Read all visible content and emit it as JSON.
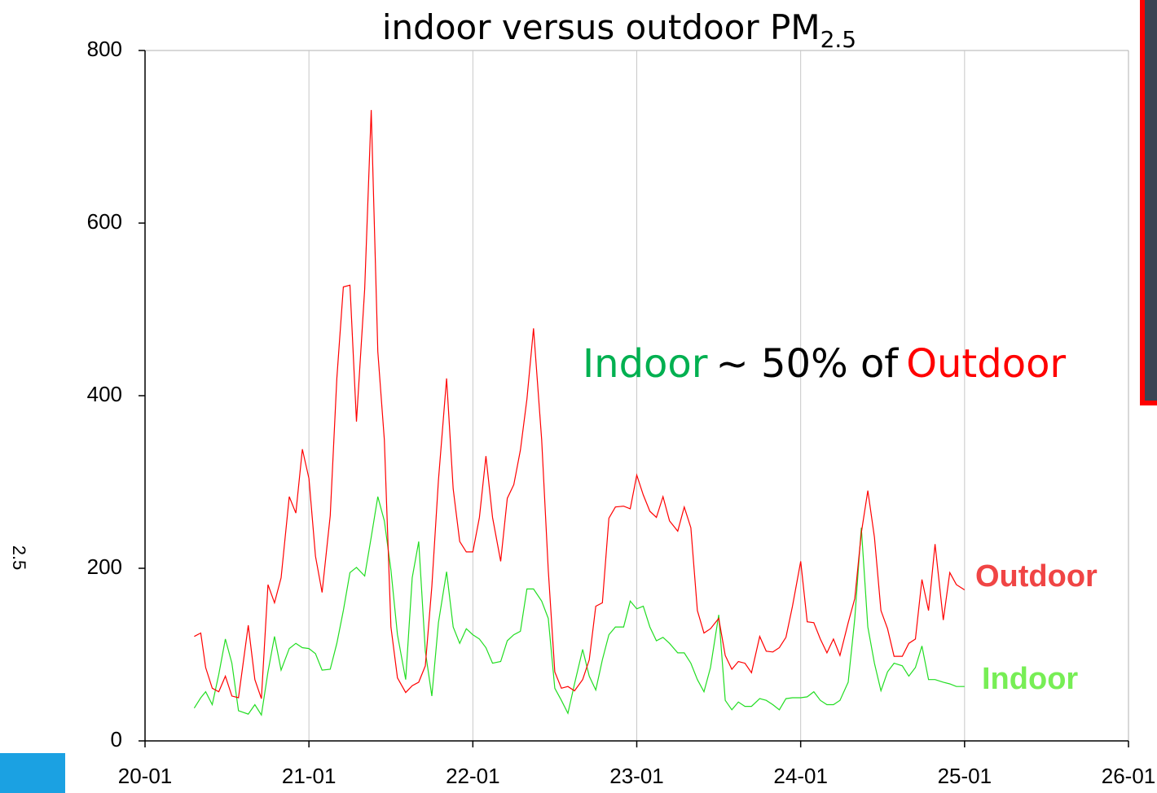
{
  "chart_data": {
    "type": "line",
    "title": "indoor versus outdoor PM",
    "title_subscript": "2.5",
    "annotation": [
      "Indoor",
      "~ 50% of",
      "Outdoor"
    ],
    "annotation_colors": [
      "#00b050",
      "#000000",
      "#ff0000"
    ],
    "x": [
      20.3,
      20.34,
      20.37,
      20.41,
      20.45,
      20.49,
      20.53,
      20.57,
      20.63,
      20.67,
      20.71,
      20.75,
      20.79,
      20.83,
      20.88,
      20.92,
      20.96,
      21.0,
      21.04,
      21.08,
      21.13,
      21.17,
      21.21,
      21.25,
      21.29,
      21.34,
      21.38,
      21.42,
      21.46,
      21.5,
      21.54,
      21.59,
      21.63,
      21.67,
      21.71,
      21.75,
      21.79,
      21.84,
      21.88,
      21.92,
      21.96,
      22.0,
      22.04,
      22.08,
      22.12,
      22.17,
      22.21,
      22.25,
      22.29,
      22.33,
      22.37,
      22.42,
      22.46,
      22.5,
      22.54,
      22.58,
      22.62,
      22.67,
      22.71,
      22.75,
      22.79,
      22.83,
      22.87,
      22.92,
      22.96,
      23.0,
      23.04,
      23.08,
      23.12,
      23.16,
      23.2,
      23.25,
      23.29,
      23.33,
      23.37,
      23.41,
      23.45,
      23.5,
      23.54,
      23.58,
      23.62,
      23.66,
      23.7,
      23.75,
      23.79,
      23.83,
      23.87,
      23.91,
      23.95,
      24.0,
      24.04,
      24.08,
      24.12,
      24.16,
      24.2,
      24.24,
      24.29,
      24.33,
      24.37,
      24.41,
      24.45,
      24.49,
      24.53,
      24.57,
      24.62,
      24.66,
      24.7,
      24.74,
      24.78,
      24.82,
      24.87,
      24.91,
      24.95,
      25.0
    ],
    "series": [
      {
        "name": "Outdoor",
        "color": "#ff0000",
        "label_color": "#f04545",
        "values": [
          121,
          125,
          85,
          61,
          57,
          75,
          52,
          50,
          134,
          71,
          49,
          181,
          160,
          189,
          283,
          264,
          338,
          304,
          214,
          172,
          261,
          420,
          526,
          528,
          370,
          524,
          731,
          451,
          349,
          132,
          73,
          56,
          64,
          68,
          87,
          179,
          302,
          420,
          292,
          231,
          219,
          219,
          259,
          330,
          259,
          208,
          281,
          297,
          337,
          396,
          478,
          349,
          198,
          80,
          61,
          63,
          58,
          71,
          94,
          156,
          160,
          258,
          271,
          272,
          269,
          308,
          285,
          266,
          259,
          283,
          255,
          243,
          271,
          247,
          151,
          125,
          130,
          142,
          99,
          83,
          92,
          90,
          79,
          121,
          104,
          103,
          108,
          120,
          156,
          208,
          138,
          137,
          118,
          102,
          118,
          99,
          137,
          165,
          241,
          290,
          236,
          151,
          130,
          98,
          98,
          113,
          118,
          187,
          151,
          228,
          140,
          195,
          181,
          175
        ]
      },
      {
        "name": "Indoor",
        "color": "#22dd22",
        "label_color": "#77ee55",
        "values": [
          38,
          50,
          57,
          42,
          77,
          118,
          90,
          35,
          31,
          42,
          30,
          80,
          121,
          82,
          107,
          113,
          108,
          107,
          101,
          82,
          83,
          113,
          151,
          195,
          201,
          191,
          236,
          283,
          255,
          198,
          123,
          71,
          189,
          231,
          104,
          52,
          137,
          196,
          132,
          113,
          130,
          123,
          118,
          108,
          90,
          92,
          116,
          123,
          127,
          176,
          176,
          162,
          142,
          61,
          47,
          32,
          66,
          106,
          75,
          59,
          94,
          123,
          132,
          132,
          162,
          153,
          156,
          132,
          116,
          120,
          113,
          102,
          102,
          90,
          71,
          57,
          85,
          146,
          47,
          36,
          45,
          40,
          40,
          49,
          47,
          42,
          36,
          49,
          50,
          50,
          51,
          57,
          47,
          42,
          42,
          47,
          68,
          142,
          247,
          132,
          90,
          58,
          80,
          90,
          87,
          75,
          85,
          110,
          71,
          71,
          68,
          66,
          63,
          63
        ]
      }
    ],
    "xlim": [
      20,
      26
    ],
    "xticks": [
      {
        "value": 20,
        "label": "20-01"
      },
      {
        "value": 21,
        "label": "21-01"
      },
      {
        "value": 22,
        "label": "22-01"
      },
      {
        "value": 23,
        "label": "23-01"
      },
      {
        "value": 24,
        "label": "24-01"
      },
      {
        "value": 25,
        "label": "25-01"
      },
      {
        "value": 26,
        "label": "26-01"
      }
    ],
    "ylim": [
      0,
      800
    ],
    "yticks": [
      0,
      200,
      400,
      600,
      800
    ],
    "grid": "x"
  },
  "slide": {
    "side_text": "2.5"
  }
}
